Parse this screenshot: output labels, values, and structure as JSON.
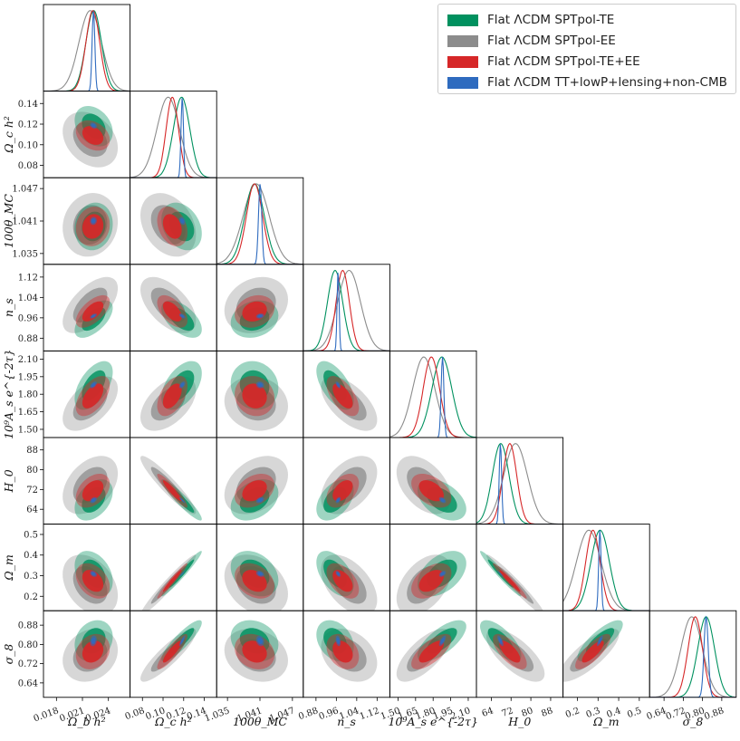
{
  "chart_data": {
    "type": "triangle-corner",
    "params": [
      {
        "key": "omb",
        "label": "Ω_b h²",
        "ticks": [
          0.018,
          0.021,
          0.024
        ],
        "tick_labels": [
          "0.018",
          "0.021",
          "0.024"
        ],
        "range": [
          0.0165,
          0.0265
        ]
      },
      {
        "key": "omc",
        "label": "Ω_c h²",
        "ticks": [
          0.08,
          0.1,
          0.12,
          0.14
        ],
        "tick_labels": [
          "0.08",
          "0.10",
          "0.12",
          "0.14"
        ],
        "range": [
          0.068,
          0.152
        ]
      },
      {
        "key": "theta",
        "label": "100θ_MC",
        "ticks": [
          1.035,
          1.041,
          1.047
        ],
        "tick_labels": [
          "1.035",
          "1.041",
          "1.047"
        ],
        "range": [
          1.033,
          1.049
        ]
      },
      {
        "key": "ns",
        "label": "n_s",
        "ticks": [
          0.88,
          0.96,
          1.04,
          1.12
        ],
        "tick_labels": [
          "0.88",
          "0.96",
          "1.04",
          "1.12"
        ],
        "range": [
          0.83,
          1.17
        ]
      },
      {
        "key": "As",
        "label": "10⁹A_s e^{-2τ}",
        "ticks": [
          1.5,
          1.65,
          1.8,
          1.95,
          2.1
        ],
        "tick_labels": [
          "1.50",
          "1.65",
          "1.80",
          "1.95",
          "2.10"
        ],
        "range": [
          1.43,
          2.17
        ]
      },
      {
        "key": "H0",
        "label": "H_0",
        "ticks": [
          64,
          72,
          80,
          88
        ],
        "tick_labels": [
          "64",
          "72",
          "80",
          "88"
        ],
        "range": [
          58,
          93
        ]
      },
      {
        "key": "Om",
        "label": "Ω_m",
        "ticks": [
          0.2,
          0.3,
          0.4,
          0.5
        ],
        "tick_labels": [
          "0.2",
          "0.3",
          "0.4",
          "0.5"
        ],
        "range": [
          0.13,
          0.55
        ]
      },
      {
        "key": "s8",
        "label": "σ_8",
        "ticks": [
          0.64,
          0.72,
          0.8,
          0.88
        ],
        "tick_labels": [
          "0.64",
          "0.72",
          "0.80",
          "0.88"
        ],
        "range": [
          0.58,
          0.94
        ]
      }
    ],
    "series": [
      {
        "name": "Flat ΛCDM SPTpol-TE",
        "color": "#00915f",
        "inner_alpha": 0.82,
        "outer_alpha": 0.38,
        "mean": [
          0.0223,
          0.118,
          1.04,
          0.955,
          1.875,
          67.8,
          0.31,
          0.815
        ],
        "sd": [
          0.0009,
          0.008,
          0.0018,
          0.03,
          0.085,
          3.4,
          0.045,
          0.035
        ]
      },
      {
        "name": "Flat ΛCDM SPTpol-EE",
        "color": "#8c8c8c",
        "inner_alpha": 0.75,
        "outer_alpha": 0.35,
        "mean": [
          0.0219,
          0.105,
          1.0403,
          1.01,
          1.72,
          73.8,
          0.255,
          0.755
        ],
        "sd": [
          0.0013,
          0.011,
          0.0024,
          0.045,
          0.095,
          4.8,
          0.06,
          0.045
        ]
      },
      {
        "name": "Flat ΛCDM SPTpol-TE+EE",
        "color": "#d62728",
        "inner_alpha": 0.92,
        "outer_alpha": 0.42,
        "mean": [
          0.0222,
          0.109,
          1.04,
          0.985,
          1.785,
          71.5,
          0.275,
          0.77
        ],
        "sd": [
          0.0008,
          0.006,
          0.0015,
          0.026,
          0.07,
          2.8,
          0.035,
          0.03
        ]
      },
      {
        "name": "Flat ΛCDM TT+lowP+lensing+non-CMB",
        "color": "#2e6bbf",
        "inner_alpha": 0.92,
        "outer_alpha": 0.55,
        "mean": [
          0.02227,
          0.1186,
          1.04103,
          0.967,
          1.88,
          67.7,
          0.309,
          0.815
        ],
        "sd": [
          0.00016,
          0.0012,
          0.0003,
          0.004,
          0.012,
          0.5,
          0.006,
          0.009
        ]
      }
    ],
    "correlations": {
      "0-1": -0.3,
      "0-2": 0.1,
      "0-3": 0.6,
      "0-4": 0.55,
      "0-5": 0.4,
      "0-6": -0.35,
      "0-7": 0.2,
      "1-2": -0.3,
      "1-3": -0.55,
      "1-4": 0.5,
      "1-5": -0.93,
      "1-6": 0.97,
      "1-7": 0.88,
      "2-3": 0.2,
      "2-4": -0.1,
      "2-5": 0.35,
      "2-6": -0.3,
      "2-7": -0.2,
      "3-4": -0.6,
      "3-5": 0.45,
      "3-6": -0.5,
      "3-7": -0.3,
      "4-5": -0.45,
      "4-6": 0.45,
      "4-7": 0.7,
      "5-6": -0.97,
      "5-7": -0.7,
      "6-7": 0.8
    }
  },
  "legend": {
    "items": [
      {
        "label": "Flat ΛCDM SPTpol-TE",
        "color": "#00915f"
      },
      {
        "label": "Flat ΛCDM SPTpol-EE",
        "color": "#8c8c8c"
      },
      {
        "label": "Flat ΛCDM SPTpol-TE+EE",
        "color": "#d62728"
      },
      {
        "label": "Flat ΛCDM TT+lowP+lensing+non-CMB",
        "color": "#2e6bbf"
      }
    ]
  }
}
